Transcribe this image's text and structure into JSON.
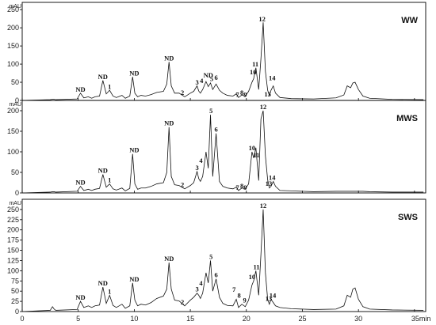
{
  "chart_data": {
    "type": "line",
    "description_units": {
      "x_unit": "min",
      "y_unit": "mAU"
    },
    "x_axis": {
      "range": [
        0,
        36
      ],
      "ticks": [
        0,
        5,
        10,
        15,
        20,
        25,
        30,
        35
      ],
      "tick_labels": [
        "0",
        "5",
        "10",
        "15",
        "20",
        "25",
        "30",
        "35min"
      ]
    },
    "panels": [
      {
        "title": "WW",
        "y_unit_label": "mAU",
        "ylim": [
          0,
          270
        ],
        "y_ticks": [
          0,
          50,
          100,
          150,
          200,
          250
        ],
        "x": [
          0,
          2.5,
          2.7,
          2.85,
          3,
          4.9,
          5.2,
          5.5,
          5.9,
          6.2,
          6.5,
          6.9,
          7.2,
          7.5,
          7.8,
          8.1,
          8.4,
          8.9,
          9.2,
          9.6,
          9.85,
          10.05,
          10.3,
          10.6,
          11,
          11.5,
          12,
          12.6,
          12.9,
          13.1,
          13.3,
          13.6,
          14,
          14.5,
          15,
          15.3,
          15.6,
          15.75,
          15.9,
          16.1,
          16.4,
          16.6,
          16.8,
          17,
          17.3,
          17.6,
          17.9,
          18.3,
          18.8,
          19.1,
          19.3,
          19.6,
          19.9,
          20.2,
          20.5,
          20.65,
          20.85,
          21.1,
          21.3,
          21.5,
          21.7,
          21.9,
          22.05,
          22.2,
          22.4,
          22.6,
          23,
          24,
          26,
          28,
          28.7,
          29,
          29.3,
          29.5,
          29.7,
          30,
          30.4,
          31,
          33,
          35.8
        ],
        "y": [
          0,
          2,
          3,
          3,
          2,
          4,
          20,
          7,
          10,
          6,
          10,
          12,
          55,
          18,
          28,
          12,
          8,
          14,
          6,
          12,
          65,
          20,
          10,
          14,
          12,
          16,
          22,
          25,
          45,
          106,
          40,
          20,
          20,
          10,
          20,
          25,
          40,
          26,
          20,
          30,
          52,
          38,
          48,
          30,
          45,
          28,
          20,
          14,
          12,
          18,
          8,
          15,
          12,
          25,
          50,
          60,
          90,
          30,
          115,
          215,
          80,
          28,
          14,
          28,
          40,
          20,
          8,
          5,
          4,
          7,
          15,
          40,
          35,
          48,
          50,
          30,
          12,
          6,
          3,
          2
        ],
        "peak_labels": [
          {
            "text": "ND",
            "x": 5.2,
            "y": 24
          },
          {
            "text": "ND",
            "x": 7.2,
            "y": 59
          },
          {
            "text": "1",
            "x": 7.8,
            "y": 32
          },
          {
            "text": "ND",
            "x": 10.0,
            "y": 69
          },
          {
            "text": "ND",
            "x": 13.1,
            "y": 110
          },
          {
            "text": "2",
            "x": 14.3,
            "y": 15
          },
          {
            "text": "3",
            "x": 15.6,
            "y": 44
          },
          {
            "text": "4",
            "x": 16.0,
            "y": 48
          },
          {
            "text": "ND",
            "x": 16.6,
            "y": 63
          },
          {
            "text": "5",
            "x": 16.9,
            "y": 53
          },
          {
            "text": "6",
            "x": 17.3,
            "y": 57
          },
          {
            "text": "7",
            "x": 19.2,
            "y": 10
          },
          {
            "text": "8",
            "x": 19.6,
            "y": 15
          },
          {
            "text": "9",
            "x": 19.9,
            "y": 10
          },
          {
            "text": "10",
            "x": 20.6,
            "y": 72
          },
          {
            "text": "11",
            "x": 20.8,
            "y": 94
          },
          {
            "text": "12",
            "x": 21.4,
            "y": 218
          },
          {
            "text": "13",
            "x": 21.9,
            "y": 11
          },
          {
            "text": "14",
            "x": 22.3,
            "y": 55
          }
        ]
      },
      {
        "title": "MWS",
        "y_unit_label": "mAU",
        "ylim": [
          0,
          225
        ],
        "y_ticks": [
          0,
          50,
          100,
          150,
          200
        ],
        "x": [
          0,
          2.5,
          2.7,
          2.85,
          3,
          4.9,
          5.2,
          5.5,
          5.9,
          6.2,
          6.5,
          6.9,
          7.2,
          7.5,
          7.8,
          8.1,
          8.4,
          8.9,
          9.2,
          9.6,
          9.85,
          10.05,
          10.3,
          10.6,
          11,
          11.5,
          12,
          12.6,
          12.9,
          13.1,
          13.3,
          13.6,
          14,
          14.5,
          15,
          15.3,
          15.6,
          15.75,
          15.9,
          16.1,
          16.4,
          16.6,
          16.8,
          17,
          17.3,
          17.6,
          17.9,
          18.3,
          18.8,
          19.1,
          19.3,
          19.6,
          19.9,
          20.2,
          20.5,
          20.65,
          20.85,
          21.1,
          21.3,
          21.5,
          21.7,
          21.9,
          22.05,
          22.2,
          22.4,
          22.6,
          23,
          24,
          26,
          28,
          28.7,
          29,
          29.3,
          29.5,
          29.7,
          30,
          30.4,
          31,
          33,
          35.8
        ],
        "y": [
          0,
          2,
          3,
          3,
          2,
          4,
          16,
          6,
          9,
          6,
          9,
          11,
          45,
          14,
          22,
          10,
          7,
          12,
          5,
          11,
          95,
          22,
          9,
          12,
          12,
          16,
          22,
          25,
          50,
          160,
          40,
          20,
          18,
          10,
          18,
          25,
          52,
          35,
          28,
          40,
          100,
          60,
          190,
          40,
          145,
          28,
          16,
          12,
          10,
          14,
          6,
          12,
          10,
          22,
          100,
          85,
          110,
          30,
          180,
          200,
          90,
          32,
          12,
          16,
          28,
          16,
          6,
          5,
          3,
          4,
          4,
          4,
          4,
          4,
          4,
          4,
          4,
          3,
          2,
          2
        ],
        "peak_labels": [
          {
            "text": "ND",
            "x": 5.2,
            "y": 20
          },
          {
            "text": "ND",
            "x": 7.2,
            "y": 49
          },
          {
            "text": "1",
            "x": 7.8,
            "y": 26
          },
          {
            "text": "ND",
            "x": 10.0,
            "y": 99
          },
          {
            "text": "ND",
            "x": 13.1,
            "y": 164
          },
          {
            "text": "2",
            "x": 14.3,
            "y": 14
          },
          {
            "text": "3",
            "x": 15.6,
            "y": 56
          },
          {
            "text": "4",
            "x": 15.95,
            "y": 73
          },
          {
            "text": "5",
            "x": 16.85,
            "y": 194
          },
          {
            "text": "6",
            "x": 17.3,
            "y": 149
          },
          {
            "text": "7",
            "x": 19.2,
            "y": 8
          },
          {
            "text": "8",
            "x": 19.6,
            "y": 12
          },
          {
            "text": "9",
            "x": 19.9,
            "y": 8
          },
          {
            "text": "10",
            "x": 20.5,
            "y": 104
          },
          {
            "text": "11",
            "x": 20.9,
            "y": 87
          },
          {
            "text": "12",
            "x": 21.5,
            "y": 204
          },
          {
            "text": "13",
            "x": 22.0,
            "y": 17
          },
          {
            "text": "14",
            "x": 22.3,
            "y": 32
          }
        ]
      },
      {
        "title": "SWS",
        "y_unit_label": "mAU",
        "ylim": [
          0,
          275
        ],
        "y_ticks": [
          0,
          25,
          50,
          75,
          100,
          125,
          150,
          175,
          200,
          225,
          250
        ],
        "x": [
          0,
          2.5,
          2.7,
          2.85,
          3,
          4.9,
          5.2,
          5.5,
          5.9,
          6.2,
          6.5,
          6.9,
          7.2,
          7.5,
          7.8,
          8.1,
          8.4,
          8.9,
          9.2,
          9.6,
          9.85,
          10.05,
          10.3,
          10.6,
          11,
          11.5,
          12,
          12.6,
          12.9,
          13.1,
          13.3,
          13.6,
          14,
          14.5,
          15,
          15.3,
          15.6,
          15.75,
          15.9,
          16.1,
          16.4,
          16.6,
          16.8,
          17,
          17.3,
          17.6,
          17.9,
          18.3,
          18.8,
          19.1,
          19.3,
          19.6,
          19.9,
          20.2,
          20.5,
          20.65,
          20.85,
          21.1,
          21.3,
          21.5,
          21.7,
          21.9,
          22.05,
          22.2,
          22.4,
          22.6,
          23,
          24,
          26,
          28,
          28.7,
          29,
          29.3,
          29.5,
          29.7,
          30,
          30.4,
          31,
          33,
          35.8
        ],
        "y": [
          0,
          3,
          12,
          6,
          3,
          5,
          25,
          10,
          14,
          10,
          14,
          16,
          60,
          20,
          40,
          15,
          10,
          18,
          8,
          14,
          70,
          28,
          14,
          18,
          16,
          22,
          32,
          38,
          55,
          120,
          55,
          28,
          26,
          14,
          28,
          35,
          45,
          40,
          32,
          45,
          95,
          70,
          125,
          50,
          80,
          35,
          20,
          15,
          14,
          30,
          10,
          18,
          12,
          28,
          65,
          75,
          100,
          40,
          140,
          250,
          95,
          30,
          18,
          30,
          22,
          14,
          10,
          7,
          5,
          6,
          14,
          40,
          35,
          55,
          58,
          30,
          12,
          6,
          4,
          3
        ],
        "peak_labels": [
          {
            "text": "ND",
            "x": 5.2,
            "y": 29
          },
          {
            "text": "ND",
            "x": 7.2,
            "y": 64
          },
          {
            "text": "1",
            "x": 7.8,
            "y": 44
          },
          {
            "text": "ND",
            "x": 10.0,
            "y": 74
          },
          {
            "text": "ND",
            "x": 13.1,
            "y": 124
          },
          {
            "text": "2",
            "x": 14.3,
            "y": 17
          },
          {
            "text": "3",
            "x": 15.6,
            "y": 49
          },
          {
            "text": "4",
            "x": 15.95,
            "y": 64
          },
          {
            "text": "5",
            "x": 16.85,
            "y": 129
          },
          {
            "text": "6",
            "x": 17.3,
            "y": 84
          },
          {
            "text": "7",
            "x": 18.9,
            "y": 48
          },
          {
            "text": "8",
            "x": 19.35,
            "y": 34
          },
          {
            "text": "9",
            "x": 19.85,
            "y": 22
          },
          {
            "text": "10",
            "x": 20.5,
            "y": 79
          },
          {
            "text": "11",
            "x": 20.9,
            "y": 104
          },
          {
            "text": "12",
            "x": 21.5,
            "y": 254
          },
          {
            "text": "13",
            "x": 22.0,
            "y": 26
          },
          {
            "text": "14",
            "x": 22.35,
            "y": 34
          }
        ]
      }
    ]
  }
}
